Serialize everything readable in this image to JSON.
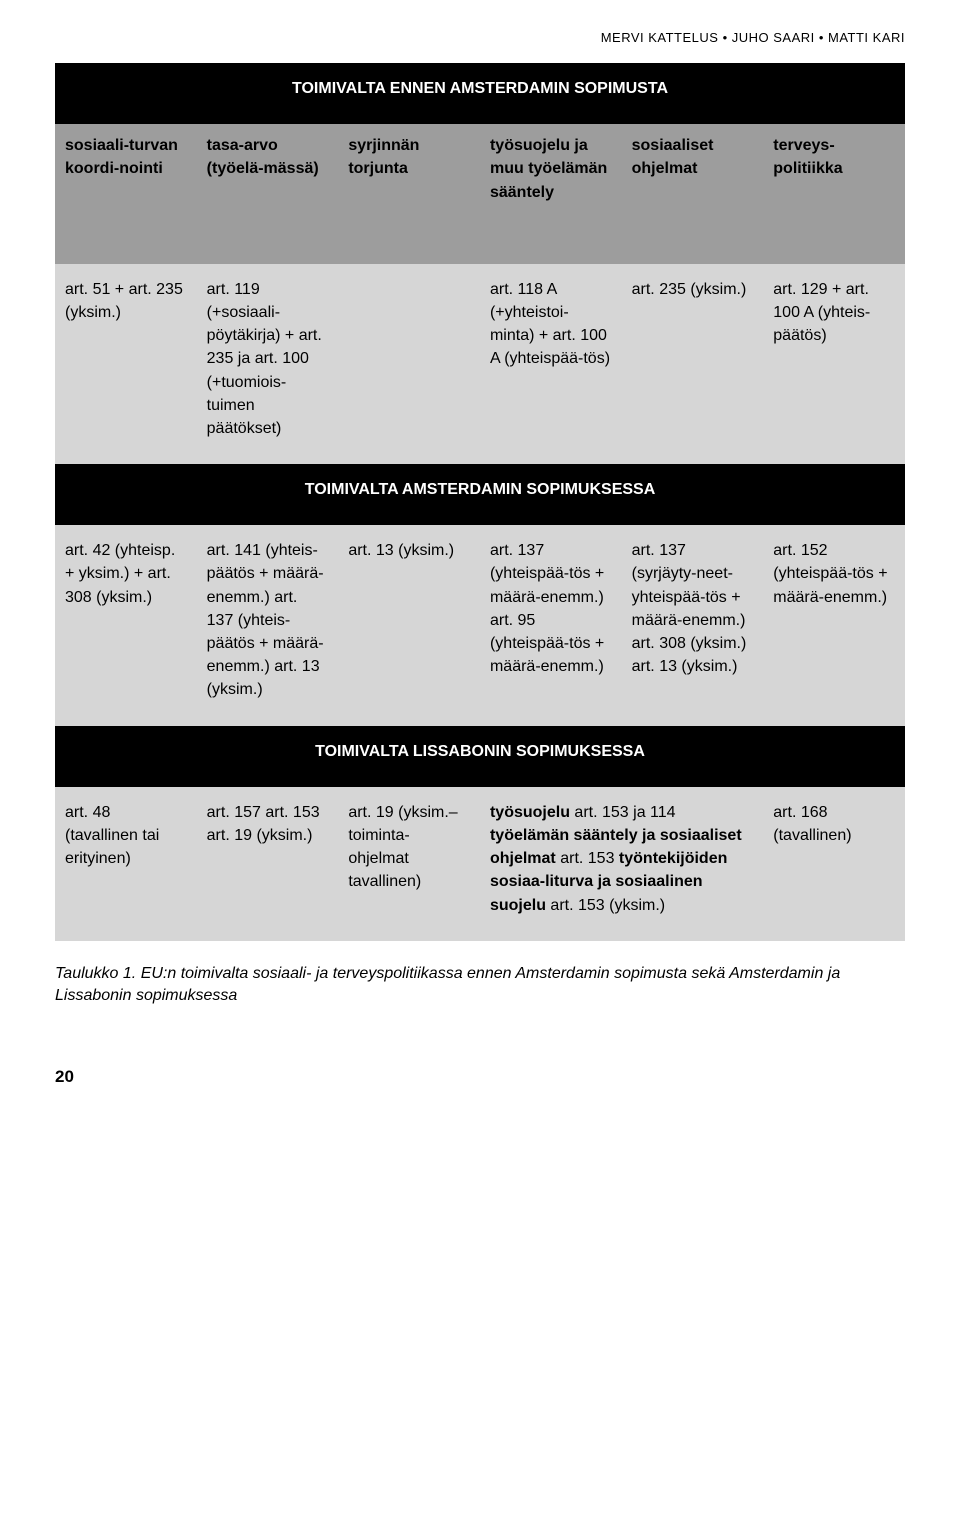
{
  "authors": "MERVI KATTELUS • JUHO SAARI • MATTI KARI",
  "section1": {
    "title": "TOIMIVALTA ENNEN AMSTERDAMIN SOPIMUSTA",
    "headers": [
      "sosiaali-turvan koordi-nointi",
      "tasa-arvo (työelä-mässä)",
      "syrjinnän torjunta",
      "työsuojelu ja muu työelämän sääntely",
      "sosiaaliset ohjelmat",
      "terveys-politiikka"
    ],
    "cells": [
      "art. 51 + art. 235 (yksim.)",
      "art. 119 (+sosiaali-pöytäkirja) + art. 235 ja art. 100 (+tuomiois-tuimen päätökset)",
      "",
      "art. 118 A (+yhteistoi-minta) + art. 100 A (yhteispää-tös)",
      "art. 235 (yksim.)",
      "art. 129 + art. 100 A (yhteis-päätös)"
    ]
  },
  "section2": {
    "title": "TOIMIVALTA AMSTERDAMIN SOPIMUKSESSA",
    "cells": [
      "art. 42 (yhteisp. + yksim.) + art. 308 (yksim.)",
      "art. 141 (yhteis-päätös + määrä-enemm.) art. 137 (yhteis-päätös + määrä-enemm.) art. 13 (yksim.)",
      "art. 13 (yksim.)",
      "art. 137 (yhteispää-tös +  määrä-enemm.) art. 95 (yhteispää-tös + määrä-enemm.)",
      "art. 137 (syrjäyty-neet- yhteispää-tös + määrä-enemm.) art. 308 (yksim.) art. 13 (yksim.)",
      "art. 152 (yhteispää-tös + määrä-enemm.)"
    ]
  },
  "section3": {
    "title": "TOIMIVALTA LISSABONIN SOPIMUKSESSA",
    "cells": [
      "art. 48 (tavallinen tai erityinen)",
      "art. 157 art. 153 art. 19 (yksim.)",
      "art. 19 (yksim.– toiminta-ohjelmat tavallinen)"
    ],
    "merged_cell": {
      "b1": "työsuojelu",
      "t1": " art. 153 ja 114 ",
      "b2": "työelämän sääntely ja sosiaaliset ohjelmat",
      "t2": " art. 153 ",
      "b3": "työntekijöiden sosiaa-liturva ja sosiaalinen suojelu",
      "t3": " art. 153 (yksim.)"
    },
    "last_cell": "art. 168 (tavallinen)"
  },
  "caption": "Taulukko 1. EU:n toimivalta sosiaali- ja terveyspolitiikassa ennen Amsterdamin sopimusta sekä Amsterdamin ja Lissabonin sopimuksessa",
  "page_number": "20"
}
